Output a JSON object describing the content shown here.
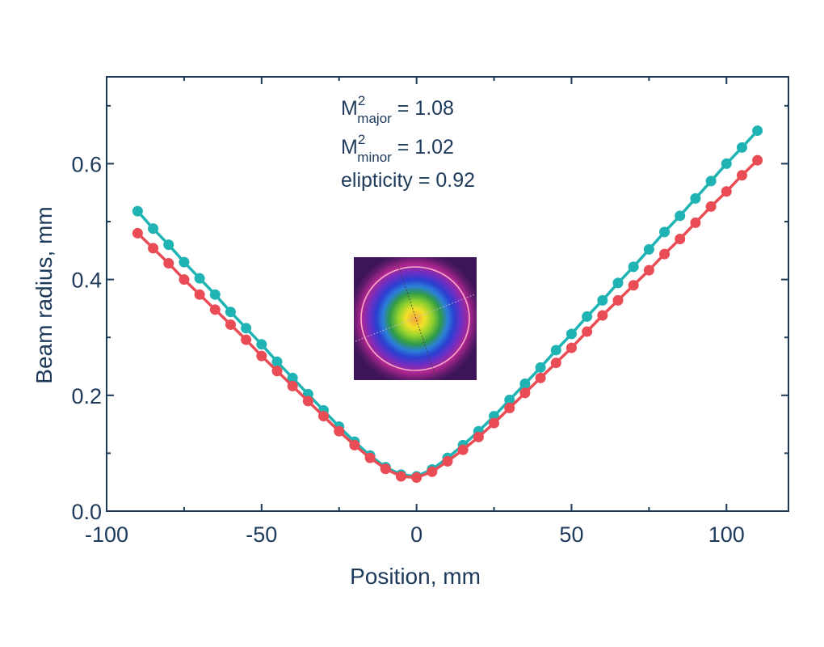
{
  "colors": {
    "axis": "#1d3a5a",
    "series_major": "#1fb3b3",
    "series_minor": "#e94c55"
  },
  "annotation": {
    "line1": {
      "base": "M",
      "sup": "2",
      "sub": "major",
      "rest": " = 1.08"
    },
    "line2": {
      "base": "M",
      "sup": "2",
      "sub": "minor",
      "rest": " = 1.02"
    },
    "line3": "elipticity = 0.92"
  },
  "inset_image": {
    "icon": "beam-profile-image"
  },
  "chart_data": {
    "type": "line",
    "title": "",
    "xlabel": "Position, mm",
    "ylabel": "Beam radius, mm",
    "xlim": [
      -100,
      120
    ],
    "ylim": [
      0,
      0.75
    ],
    "x_ticks": [
      -100,
      -50,
      0,
      50,
      100
    ],
    "x_tick_labels": [
      "-100",
      "-50",
      "0",
      "50",
      "100"
    ],
    "y_ticks": [
      0.0,
      0.2,
      0.4,
      0.6
    ],
    "y_tick_labels": [
      "0.0",
      "0.2",
      "0.4",
      "0.6"
    ],
    "grid": false,
    "x": [
      -90,
      -85,
      -80,
      -75,
      -70,
      -65,
      -60,
      -55,
      -50,
      -45,
      -40,
      -35,
      -30,
      -25,
      -20,
      -15,
      -10,
      -5,
      0,
      5,
      10,
      15,
      20,
      25,
      30,
      35,
      40,
      45,
      50,
      55,
      60,
      65,
      70,
      75,
      80,
      85,
      90,
      95,
      100,
      105,
      110
    ],
    "series": [
      {
        "values": [
          0.518,
          0.488,
          0.46,
          0.43,
          0.402,
          0.374,
          0.344,
          0.316,
          0.288,
          0.258,
          0.23,
          0.202,
          0.174,
          0.146,
          0.12,
          0.096,
          0.076,
          0.063,
          0.06,
          0.072,
          0.092,
          0.114,
          0.138,
          0.164,
          0.192,
          0.22,
          0.248,
          0.278,
          0.306,
          0.336,
          0.364,
          0.394,
          0.422,
          0.452,
          0.482,
          0.51,
          0.54,
          0.57,
          0.6,
          0.628,
          0.657
        ]
      },
      {
        "values": [
          0.48,
          0.454,
          0.428,
          0.4,
          0.374,
          0.348,
          0.322,
          0.296,
          0.268,
          0.242,
          0.216,
          0.19,
          0.164,
          0.138,
          0.114,
          0.092,
          0.073,
          0.06,
          0.058,
          0.068,
          0.086,
          0.106,
          0.128,
          0.152,
          0.178,
          0.204,
          0.23,
          0.256,
          0.282,
          0.31,
          0.338,
          0.364,
          0.39,
          0.416,
          0.444,
          0.47,
          0.498,
          0.526,
          0.552,
          0.58,
          0.606
        ]
      }
    ]
  }
}
